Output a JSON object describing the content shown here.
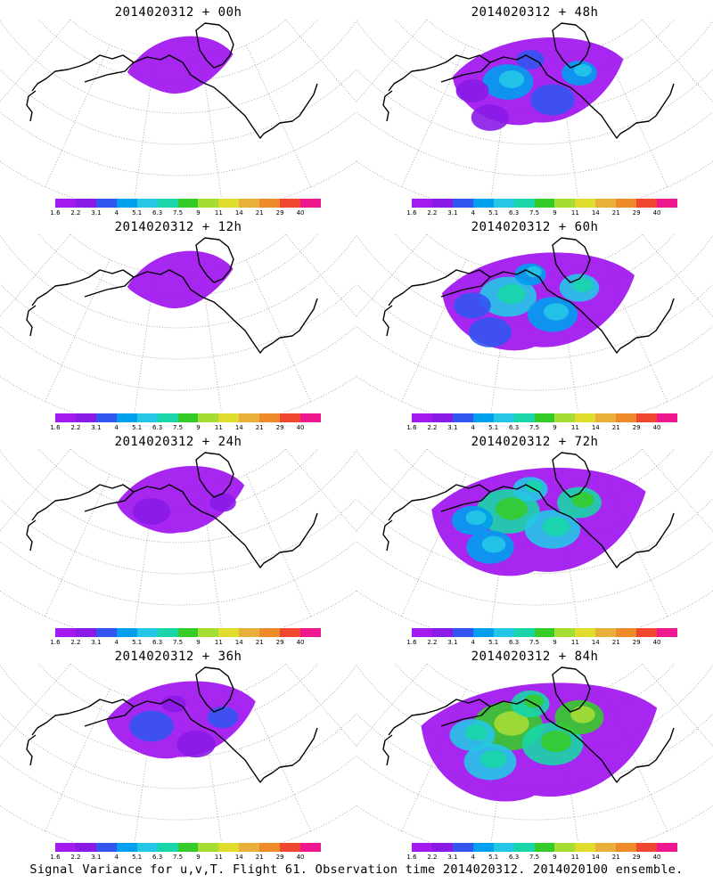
{
  "colorbar": {
    "colors": [
      "#a21aef",
      "#8a1be6",
      "#3355f0",
      "#00a0ee",
      "#25c6e6",
      "#19d6a8",
      "#35cc2a",
      "#a6dd35",
      "#dfdc2e",
      "#e8b03a",
      "#ee8a2a",
      "#f04830",
      "#f01890"
    ],
    "labels": [
      "1.6",
      "2.2",
      "3.1",
      "4",
      "5.1",
      "6.3",
      "7.5",
      "9",
      "11",
      "14",
      "21",
      "29",
      "40"
    ]
  },
  "panels": [
    {
      "title": "2014020312 + 00h",
      "level": 1
    },
    {
      "title": "2014020312 + 48h",
      "level": 4
    },
    {
      "title": "2014020312 + 12h",
      "level": 1
    },
    {
      "title": "2014020312 + 60h",
      "level": 5
    },
    {
      "title": "2014020312 + 24h",
      "level": 2
    },
    {
      "title": "2014020312 + 72h",
      "level": 6
    },
    {
      "title": "2014020312 + 36h",
      "level": 3
    },
    {
      "title": "2014020312 + 84h",
      "level": 7
    }
  ],
  "caption": "Signal Variance for u,v,T. Flight 61. Observation time 2014020312. 2014020100 ensemble."
}
